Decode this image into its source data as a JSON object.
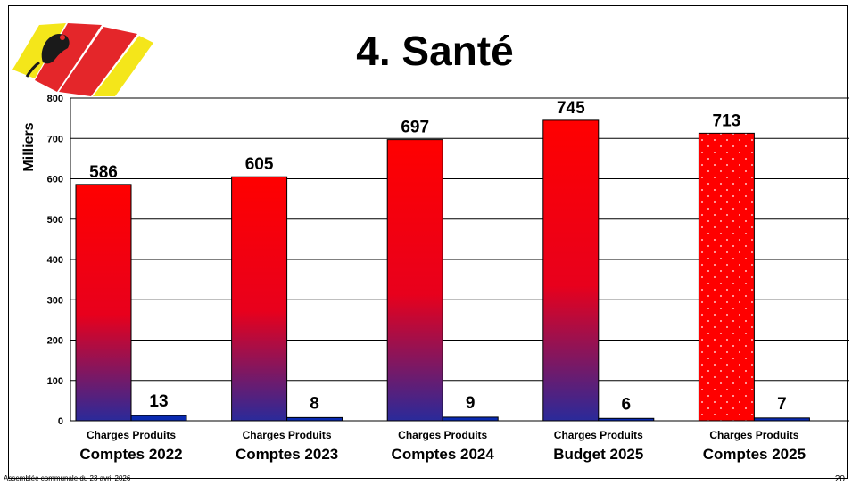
{
  "slide": {
    "title": "4. Santé",
    "footer": "Assemblée communale du 23 avril 2026",
    "page_number": "20",
    "logo_icon": "municipal-coat-of-arms-icon"
  },
  "colors": {
    "charges_top": "#ff0000",
    "charges_bottom": "#2a2a9a",
    "produits": "#0a2ab0",
    "highlight_pattern": "dotted-red"
  },
  "chart_data": {
    "type": "bar",
    "ylabel": "Milliers",
    "ylim": [
      0,
      800
    ],
    "yticks": [
      0,
      100,
      200,
      300,
      400,
      500,
      600,
      700,
      800
    ],
    "grid": true,
    "sub_labels": [
      "Charges",
      "Produits"
    ],
    "categories": [
      "Comptes 2022",
      "Comptes 2023",
      "Comptes 2024",
      "Budget 2025",
      "Comptes 2025"
    ],
    "series": [
      {
        "name": "Charges",
        "values": [
          586,
          605,
          697,
          745,
          713
        ]
      },
      {
        "name": "Produits",
        "values": [
          13,
          8,
          9,
          6,
          7
        ]
      }
    ],
    "highlighted_category": "Comptes 2025"
  }
}
